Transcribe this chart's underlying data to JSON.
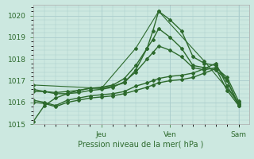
{
  "xlabel": "Pression niveau de la mer( hPa )",
  "background_color": "#cce8e0",
  "grid_color": "#aacccc",
  "line_color": "#2d6a2d",
  "ylim": [
    1015.0,
    1020.5
  ],
  "yticks": [
    1015,
    1016,
    1017,
    1018,
    1019,
    1020
  ],
  "xtick_positions": [
    0.333,
    0.667,
    1.0
  ],
  "xtick_labels": [
    "Jeu",
    "Ven",
    "Sam"
  ],
  "lines": [
    {
      "x": [
        0.0,
        0.055,
        0.11,
        0.167,
        0.222,
        0.278,
        0.333,
        0.389,
        0.444,
        0.5,
        0.555,
        0.583,
        0.611,
        0.667,
        0.722,
        0.778,
        0.833,
        0.889,
        0.944,
        1.0
      ],
      "y": [
        1015.1,
        1015.85,
        1016.2,
        1016.4,
        1016.55,
        1016.65,
        1016.65,
        1016.75,
        1016.9,
        1017.5,
        1018.5,
        1019.3,
        1020.2,
        1019.8,
        1019.3,
        1018.1,
        1017.8,
        1017.7,
        1017.0,
        1015.9
      ],
      "marker": "D",
      "markersize": 2.0,
      "linewidth": 1.0
    },
    {
      "x": [
        0.0,
        0.055,
        0.11,
        0.167,
        0.222,
        0.278,
        0.333,
        0.389,
        0.444,
        0.5,
        0.555,
        0.583,
        0.611,
        0.667,
        0.722,
        0.778,
        0.833,
        0.889,
        0.944,
        1.0
      ],
      "y": [
        1016.5,
        1016.5,
        1016.45,
        1016.5,
        1016.55,
        1016.65,
        1016.7,
        1016.8,
        1017.1,
        1017.7,
        1018.5,
        1018.9,
        1019.4,
        1019.0,
        1018.5,
        1017.7,
        1017.6,
        1017.5,
        1017.0,
        1015.85
      ],
      "marker": "D",
      "markersize": 2.0,
      "linewidth": 1.0
    },
    {
      "x": [
        0.0,
        0.055,
        0.11,
        0.167,
        0.222,
        0.278,
        0.333,
        0.389,
        0.444,
        0.5,
        0.555,
        0.583,
        0.611,
        0.667,
        0.722,
        0.778,
        0.833,
        0.889,
        0.944,
        1.0
      ],
      "y": [
        1016.6,
        1016.5,
        1016.4,
        1016.4,
        1016.45,
        1016.55,
        1016.6,
        1016.7,
        1016.95,
        1017.4,
        1018.0,
        1018.3,
        1018.6,
        1018.4,
        1018.1,
        1017.6,
        1017.5,
        1017.6,
        1017.15,
        1016.05
      ],
      "marker": "D",
      "markersize": 2.0,
      "linewidth": 1.0
    },
    {
      "x": [
        0.0,
        0.333,
        0.5,
        0.611,
        0.833,
        1.0
      ],
      "y": [
        1016.8,
        1016.65,
        1018.5,
        1020.2,
        1017.9,
        1016.0
      ],
      "marker": "D",
      "markersize": 2.0,
      "linewidth": 0.8
    },
    {
      "x": [
        0.0,
        0.055,
        0.11,
        0.167,
        0.222,
        0.278,
        0.333,
        0.389,
        0.444,
        0.5,
        0.555,
        0.583,
        0.611,
        0.667,
        0.722,
        0.778,
        0.833,
        0.889,
        0.944,
        1.0
      ],
      "y": [
        1016.1,
        1016.0,
        1015.85,
        1016.1,
        1016.2,
        1016.3,
        1016.35,
        1016.4,
        1016.5,
        1016.75,
        1016.9,
        1017.0,
        1017.1,
        1017.2,
        1017.25,
        1017.35,
        1017.55,
        1017.8,
        1016.75,
        1015.9
      ],
      "marker": "D",
      "markersize": 2.0,
      "linewidth": 1.0
    },
    {
      "x": [
        0.0,
        0.055,
        0.11,
        0.167,
        0.222,
        0.278,
        0.333,
        0.389,
        0.444,
        0.5,
        0.555,
        0.583,
        0.611,
        0.667,
        0.722,
        0.778,
        0.833,
        0.889,
        0.944,
        1.0
      ],
      "y": [
        1016.0,
        1015.95,
        1015.8,
        1016.0,
        1016.1,
        1016.2,
        1016.25,
        1016.3,
        1016.4,
        1016.55,
        1016.7,
        1016.8,
        1016.9,
        1017.0,
        1017.05,
        1017.15,
        1017.35,
        1017.55,
        1016.55,
        1015.85
      ],
      "marker": "D",
      "markersize": 2.0,
      "linewidth": 1.0
    }
  ]
}
